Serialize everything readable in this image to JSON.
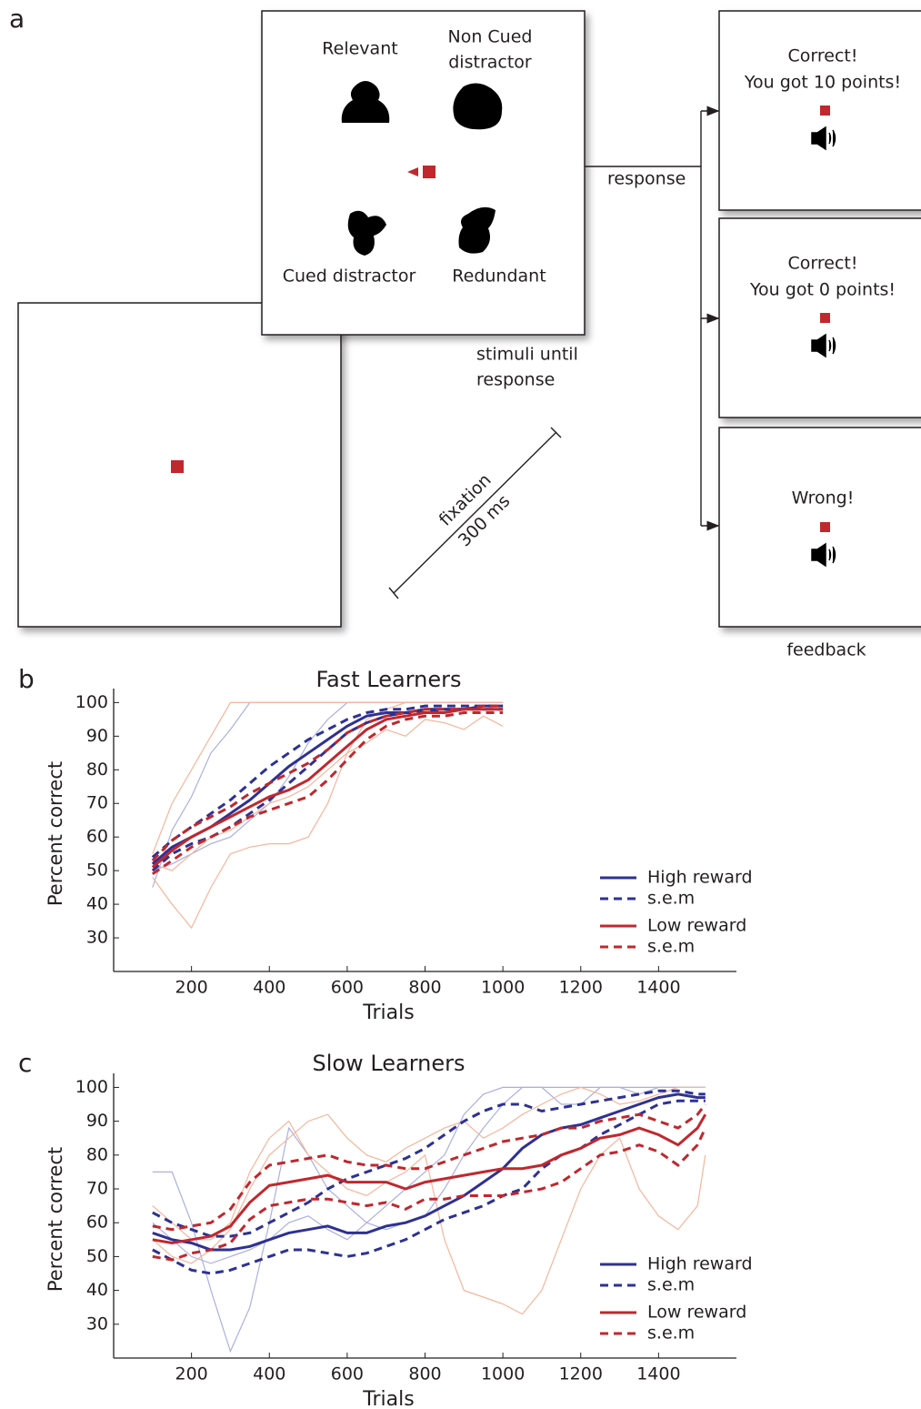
{
  "diagram": {
    "panel_label": "a",
    "stimulus": {
      "relevant": "Relevant",
      "non_cued_1": "Non Cued",
      "non_cued_2": "distractor",
      "cued": "Cued distractor",
      "redundant": "Redundant",
      "caption_1": "stimuli until",
      "caption_2": "response"
    },
    "response": "response",
    "fixation": {
      "line_1": "fixation",
      "line_2": "300 ms"
    },
    "feedback": [
      {
        "line_1": "Correct!",
        "line_2": "You got 10 points!"
      },
      {
        "line_1": "Correct!",
        "line_2": "You got 0 points!"
      },
      {
        "line_1": "Wrong!"
      }
    ],
    "feedback_caption": "feedback"
  },
  "chart_data": [
    {
      "type": "line",
      "panel_label": "b",
      "title": "Fast Learners",
      "x_label": "Trials",
      "y_label": "Percent correct",
      "x": [
        100,
        150,
        200,
        250,
        300,
        350,
        400,
        450,
        500,
        550,
        600,
        650,
        700,
        750,
        800,
        850,
        900,
        950,
        1000
      ],
      "xlim": [
        0,
        1600
      ],
      "xticks": [
        200,
        400,
        600,
        800,
        1000,
        1200,
        1400
      ],
      "ylim": [
        20,
        102
      ],
      "yticks": [
        30,
        40,
        50,
        60,
        70,
        80,
        90,
        100
      ],
      "legend": "lower right",
      "individual_series": [
        {
          "color": "#aab0e2",
          "values": [
            45,
            62,
            72,
            85,
            92,
            100,
            100,
            100,
            100,
            100,
            100,
            100,
            100,
            100,
            100,
            100,
            100,
            100,
            100
          ]
        },
        {
          "color": "#aab0e2",
          "values": [
            50,
            52,
            55,
            58,
            60,
            65,
            70,
            78,
            88,
            95,
            100,
            100,
            100,
            100,
            100,
            100,
            100,
            100,
            100
          ]
        },
        {
          "color": "#f5b59b",
          "values": [
            48,
            40,
            33,
            45,
            55,
            57,
            58,
            58,
            60,
            70,
            85,
            95,
            98,
            100,
            100,
            100,
            100,
            100,
            100
          ]
        },
        {
          "color": "#f5b59b",
          "values": [
            55,
            70,
            80,
            90,
            100,
            100,
            100,
            100,
            100,
            100,
            100,
            100,
            100,
            100,
            100,
            100,
            100,
            100,
            100
          ]
        },
        {
          "color": "#f5b59b",
          "values": [
            52,
            50,
            55,
            60,
            62,
            66,
            70,
            72,
            75,
            80,
            85,
            88,
            92,
            90,
            95,
            94,
            92,
            96,
            93
          ]
        }
      ],
      "series": [
        {
          "name": "High reward",
          "color": "#2e3192",
          "values": [
            52,
            57,
            60,
            63,
            67,
            71,
            76,
            81,
            85,
            89,
            93,
            96,
            97,
            97,
            98,
            98,
            98,
            99,
            99
          ]
        },
        {
          "name": "s.e.m",
          "color": "#2e3192",
          "dashed": true,
          "upper": [
            54,
            59,
            63,
            67,
            71,
            76,
            81,
            85,
            89,
            92,
            95,
            97,
            98,
            98,
            99,
            99,
            99,
            99,
            99
          ],
          "lower": [
            50,
            55,
            58,
            60,
            63,
            67,
            71,
            76,
            81,
            86,
            91,
            94,
            96,
            97,
            97,
            98,
            98,
            98,
            98
          ]
        },
        {
          "name": "Low reward",
          "color": "#c1272d",
          "values": [
            51,
            56,
            60,
            63,
            66,
            69,
            72,
            74,
            77,
            82,
            87,
            92,
            95,
            96,
            97,
            97,
            98,
            98,
            98
          ]
        },
        {
          "name": "s.e.m",
          "color": "#c1272d",
          "dashed": true,
          "upper": [
            53,
            59,
            63,
            66,
            69,
            73,
            76,
            79,
            82,
            86,
            91,
            94,
            96,
            97,
            98,
            98,
            98,
            99,
            99
          ],
          "lower": [
            49,
            53,
            57,
            60,
            63,
            66,
            68,
            70,
            72,
            77,
            83,
            89,
            93,
            95,
            96,
            96,
            97,
            97,
            97
          ]
        }
      ]
    },
    {
      "type": "line",
      "panel_label": "c",
      "title": "Slow Learners",
      "x_label": "Trials",
      "y_label": "Percent correct",
      "x": [
        100,
        150,
        200,
        250,
        300,
        350,
        400,
        450,
        500,
        550,
        600,
        650,
        700,
        750,
        800,
        850,
        900,
        950,
        1000,
        1050,
        1100,
        1150,
        1200,
        1250,
        1300,
        1350,
        1400,
        1450,
        1500,
        1520
      ],
      "xlim": [
        0,
        1600
      ],
      "xticks": [
        200,
        400,
        600,
        800,
        1000,
        1200,
        1400
      ],
      "ylim": [
        20,
        102
      ],
      "yticks": [
        30,
        40,
        50,
        60,
        70,
        80,
        90,
        100
      ],
      "legend": "lower right",
      "individual_series": [
        {
          "color": "#aab0e2",
          "values": [
            75,
            75,
            60,
            40,
            22,
            35,
            60,
            88,
            80,
            70,
            65,
            60,
            58,
            60,
            62,
            70,
            80,
            88,
            95,
            100,
            100,
            95,
            95,
            100,
            100,
            100,
            100,
            100,
            100,
            100
          ]
        },
        {
          "color": "#aab0e2",
          "values": [
            60,
            55,
            50,
            48,
            50,
            52,
            55,
            60,
            62,
            58,
            55,
            60,
            65,
            70,
            75,
            80,
            92,
            98,
            100,
            100,
            100,
            100,
            100,
            100,
            100,
            98,
            100,
            100,
            100,
            100
          ]
        },
        {
          "color": "#f5b59b",
          "values": [
            65,
            60,
            55,
            55,
            60,
            75,
            85,
            90,
            80,
            75,
            70,
            68,
            72,
            75,
            80,
            55,
            40,
            38,
            36,
            33,
            40,
            55,
            70,
            80,
            85,
            70,
            62,
            58,
            65,
            80
          ]
        },
        {
          "color": "#f5b59b",
          "values": [
            55,
            50,
            48,
            52,
            58,
            70,
            80,
            85,
            90,
            92,
            85,
            80,
            78,
            82,
            85,
            88,
            90,
            85,
            88,
            92,
            95,
            98,
            100,
            98,
            95,
            96,
            98,
            100,
            100,
            100
          ]
        }
      ],
      "series": [
        {
          "name": "High reward",
          "color": "#2e3192",
          "values": [
            57,
            55,
            54,
            52,
            52,
            53,
            55,
            57,
            58,
            59,
            57,
            57,
            59,
            60,
            62,
            65,
            68,
            72,
            76,
            82,
            86,
            88,
            89,
            91,
            93,
            95,
            97,
            98,
            97,
            97
          ]
        },
        {
          "name": "s.e.m",
          "color": "#2e3192",
          "dashed": true,
          "upper": [
            63,
            60,
            58,
            56,
            56,
            57,
            60,
            63,
            66,
            70,
            73,
            75,
            77,
            79,
            82,
            86,
            90,
            93,
            95,
            95,
            93,
            94,
            95,
            96,
            97,
            98,
            99,
            99,
            98,
            98
          ],
          "lower": [
            52,
            49,
            46,
            45,
            46,
            48,
            50,
            52,
            52,
            51,
            50,
            51,
            53,
            55,
            58,
            61,
            63,
            65,
            68,
            70,
            76,
            80,
            82,
            86,
            89,
            92,
            95,
            96,
            96,
            96
          ]
        },
        {
          "name": "Low reward",
          "color": "#c1272d",
          "values": [
            55,
            54,
            55,
            56,
            59,
            66,
            71,
            72,
            73,
            74,
            72,
            72,
            72,
            70,
            72,
            73,
            74,
            75,
            76,
            76,
            77,
            80,
            82,
            85,
            86,
            88,
            86,
            83,
            88,
            92
          ]
        },
        {
          "name": "s.e.m",
          "color": "#c1272d",
          "dashed": true,
          "upper": [
            59,
            58,
            59,
            60,
            64,
            72,
            77,
            78,
            79,
            80,
            78,
            77,
            77,
            76,
            76,
            78,
            80,
            82,
            84,
            85,
            86,
            88,
            88,
            90,
            91,
            92,
            90,
            88,
            92,
            95
          ],
          "lower": [
            50,
            49,
            51,
            52,
            54,
            61,
            65,
            66,
            67,
            67,
            66,
            65,
            66,
            64,
            67,
            67,
            68,
            68,
            68,
            69,
            70,
            72,
            76,
            80,
            81,
            83,
            81,
            77,
            83,
            88
          ]
        }
      ]
    }
  ]
}
